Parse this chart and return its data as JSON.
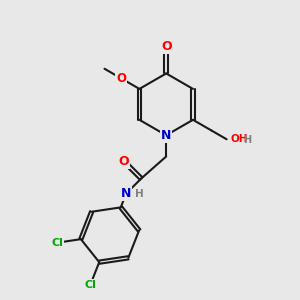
{
  "background_color": "#e8e8e8",
  "bond_color": "#1a1a1a",
  "atom_colors": {
    "O": "#ff0000",
    "N": "#0000cc",
    "Cl": "#00aa00",
    "H": "#808080",
    "C": "#1a1a1a"
  },
  "figsize": [
    3.0,
    3.0
  ],
  "dpi": 100
}
